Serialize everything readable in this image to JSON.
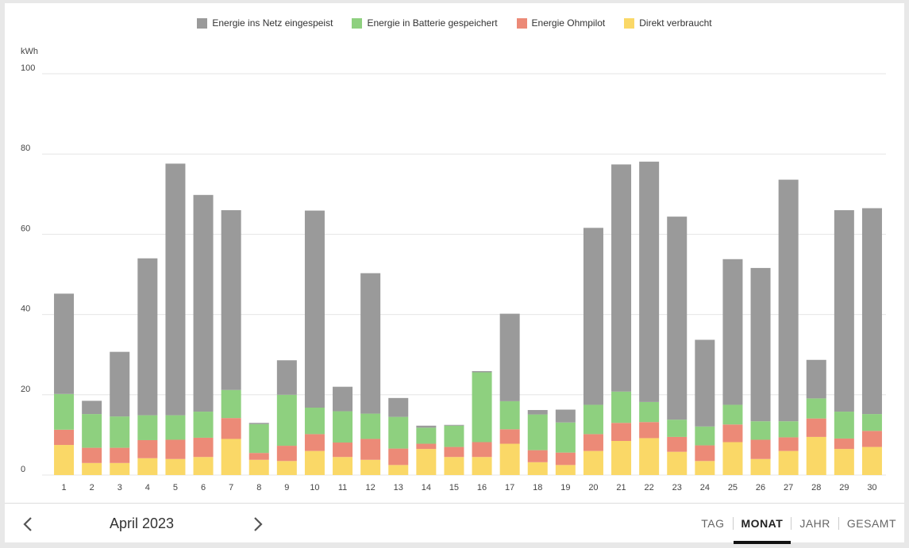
{
  "legend": {
    "grid_label": "Energie ins Netz eingespeist",
    "battery_label": "Energie in Batterie gespeichert",
    "ohmpilot_label": "Energie Ohmpilot",
    "direct_label": "Direkt verbraucht"
  },
  "colors": {
    "grid": "#9a9a9a",
    "battery": "#8ed07f",
    "ohmpilot": "#ec8a77",
    "direct": "#fad867",
    "gridline": "#e6e6e6"
  },
  "footer": {
    "period_label": "April 2023",
    "prev_icon": "chevron-left-icon",
    "next_icon": "chevron-right-icon",
    "tabs": [
      {
        "label": "TAG",
        "active": false
      },
      {
        "label": "MONAT",
        "active": true
      },
      {
        "label": "JAHR",
        "active": false
      },
      {
        "label": "GESAMT",
        "active": false
      }
    ]
  },
  "chart_data": {
    "type": "bar",
    "stacked": true,
    "ylabel": "kWh",
    "ylim": [
      0,
      100
    ],
    "yticks": [
      0,
      20,
      40,
      60,
      80,
      100
    ],
    "grid": true,
    "legend_position": "top-center",
    "categories": [
      "1",
      "2",
      "3",
      "4",
      "5",
      "6",
      "7",
      "8",
      "9",
      "10",
      "11",
      "12",
      "13",
      "14",
      "15",
      "16",
      "17",
      "18",
      "19",
      "20",
      "21",
      "22",
      "23",
      "24",
      "25",
      "26",
      "27",
      "28",
      "29",
      "30"
    ],
    "series": [
      {
        "name": "Direkt verbraucht",
        "color_key": "direct",
        "values": [
          7.5,
          3.0,
          3.0,
          4.2,
          4.0,
          4.5,
          9.0,
          3.8,
          3.5,
          6.0,
          4.5,
          3.8,
          2.5,
          6.5,
          4.5,
          4.5,
          7.8,
          3.2,
          2.5,
          6.0,
          8.5,
          9.2,
          5.8,
          3.5,
          8.2,
          4.0,
          6.0,
          9.5,
          6.5,
          7.0
        ]
      },
      {
        "name": "Energie Ohmpilot",
        "color_key": "ohmpilot",
        "values": [
          3.8,
          3.8,
          3.8,
          4.5,
          4.8,
          4.8,
          5.2,
          1.7,
          3.8,
          4.2,
          3.6,
          5.2,
          4.1,
          1.3,
          2.5,
          3.7,
          3.6,
          3.0,
          3.1,
          4.2,
          4.5,
          4.0,
          3.7,
          3.9,
          4.4,
          4.8,
          3.4,
          4.6,
          2.6,
          4.0
        ]
      },
      {
        "name": "Energie in Batterie gespeichert",
        "color_key": "battery",
        "values": [
          8.9,
          8.4,
          7.8,
          6.2,
          6.1,
          6.5,
          7.0,
          7.2,
          12.7,
          6.6,
          7.8,
          6.3,
          7.9,
          4.0,
          5.3,
          17.4,
          7.0,
          8.9,
          7.5,
          7.3,
          7.8,
          5.0,
          4.3,
          4.7,
          4.9,
          4.6,
          4.0,
          5.0,
          6.7,
          4.2
        ]
      },
      {
        "name": "Energie ins Netz eingespeist",
        "color_key": "grid",
        "values": [
          25.0,
          3.3,
          16.1,
          39.1,
          62.7,
          54.0,
          44.8,
          0.3,
          8.6,
          49.1,
          6.1,
          35.0,
          4.7,
          0.5,
          0.2,
          0.3,
          21.8,
          1.1,
          3.2,
          44.1,
          56.6,
          59.9,
          50.6,
          21.6,
          36.3,
          38.2,
          60.2,
          9.6,
          50.2,
          51.3
        ]
      }
    ]
  }
}
